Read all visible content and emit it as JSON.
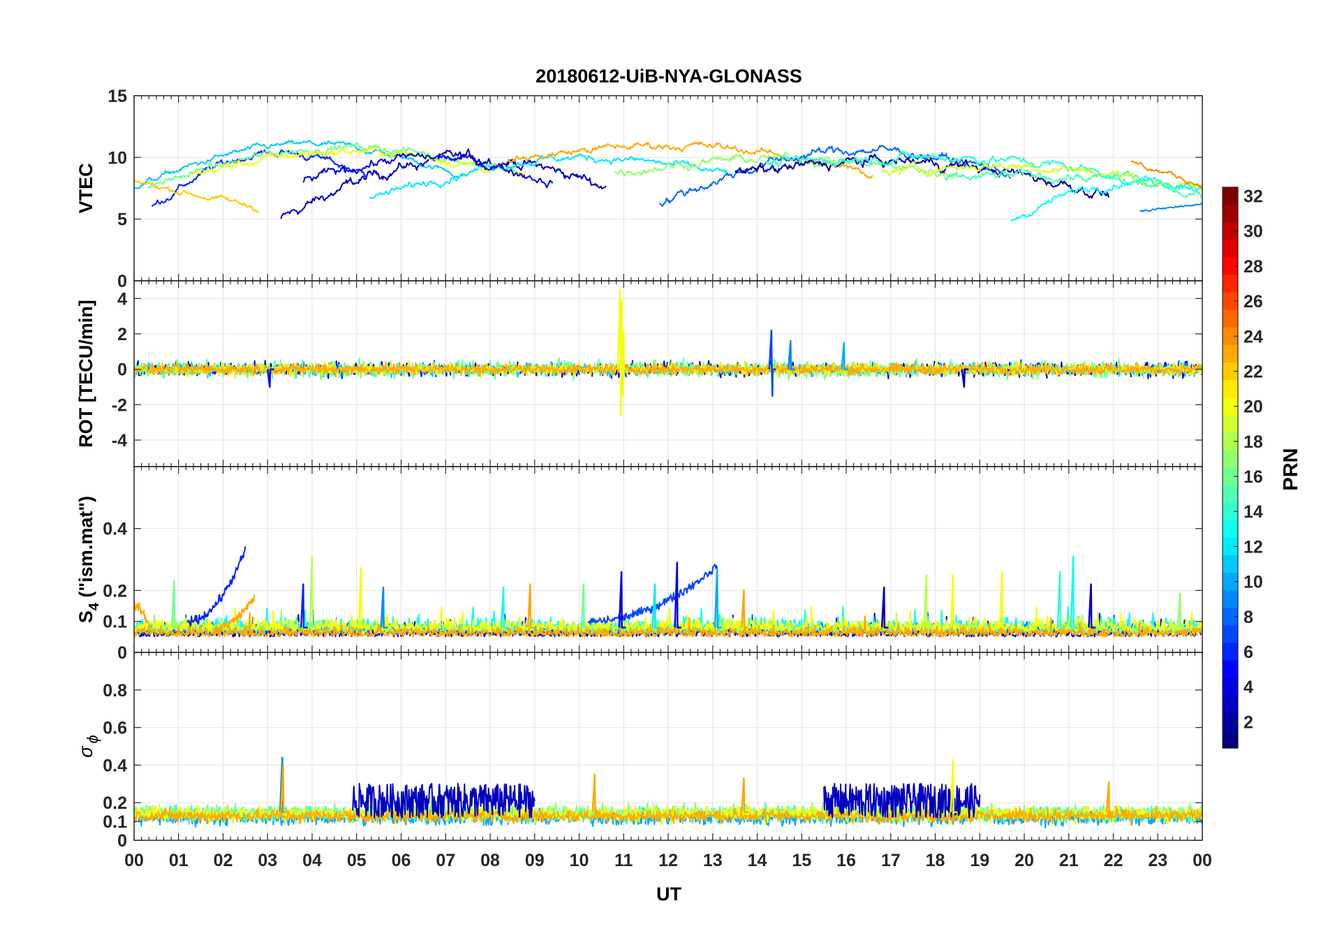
{
  "chart_data": {
    "type": "line",
    "title": "20180612-UiB-NYA-GLONASS",
    "xlabel": "UT",
    "xlim": [
      0,
      24
    ],
    "x_tick_labels": [
      "00",
      "01",
      "02",
      "03",
      "04",
      "05",
      "06",
      "07",
      "08",
      "09",
      "10",
      "11",
      "12",
      "13",
      "14",
      "15",
      "16",
      "17",
      "18",
      "19",
      "20",
      "21",
      "22",
      "23",
      "00"
    ],
    "grid": true,
    "panels": [
      {
        "name": "vtec",
        "ylabel": "VTEC",
        "ylim": [
          0,
          15
        ],
        "ticks": [
          0,
          5,
          10,
          15
        ],
        "tick_labels": [
          "0",
          "5",
          "10",
          "15"
        ],
        "traces": [
          {
            "prn": 3,
            "t0": 3.3,
            "t1": 10.6,
            "v0": 5.0,
            "v1": 7.7,
            "curve": 3.5,
            "noise": 0.35
          },
          {
            "prn": 6,
            "t0": 0.4,
            "t1": 5.2,
            "v0": 6.0,
            "v1": 8.6,
            "curve": 3.0,
            "noise": 0.25
          },
          {
            "prn": 11,
            "t0": 0.0,
            "t1": 7.4,
            "v0": 7.6,
            "v1": 8.5,
            "curve": 3.0,
            "noise": 0.2
          },
          {
            "prn": 16,
            "t0": 0.3,
            "t1": 8.6,
            "v0": 7.6,
            "v1": 8.8,
            "curve": 2.6,
            "noise": 0.25
          },
          {
            "prn": 20,
            "t0": 1.3,
            "t1": 8.8,
            "v0": 8.6,
            "v1": 8.4,
            "curve": 2.0,
            "noise": 0.25
          },
          {
            "prn": 22,
            "t0": 0.0,
            "t1": 2.8,
            "v0": 8.1,
            "v1": 5.9,
            "curve": 0.0,
            "noise": 0.2
          },
          {
            "prn": 12,
            "t0": 5.3,
            "t1": 13.4,
            "v0": 6.6,
            "v1": 8.6,
            "curve": 2.3,
            "noise": 0.25
          },
          {
            "prn": 4,
            "t0": 3.8,
            "t1": 9.4,
            "v0": 8.0,
            "v1": 8.0,
            "curve": 2.0,
            "noise": 0.3
          },
          {
            "prn": 23,
            "t0": 8.4,
            "t1": 16.6,
            "v0": 9.7,
            "v1": 8.6,
            "curve": 1.8,
            "noise": 0.25
          },
          {
            "prn": 17,
            "t0": 10.8,
            "t1": 18.4,
            "v0": 8.8,
            "v1": 8.6,
            "curve": 1.2,
            "noise": 0.3
          },
          {
            "prn": 8,
            "t0": 11.8,
            "t1": 19.7,
            "v0": 6.3,
            "v1": 8.7,
            "curve": 3.0,
            "noise": 0.3
          },
          {
            "prn": 2,
            "t0": 13.5,
            "t1": 21.9,
            "v0": 8.6,
            "v1": 7.0,
            "curve": 1.8,
            "noise": 0.35
          },
          {
            "prn": 14,
            "t0": 14.2,
            "t1": 24.0,
            "v0": 9.4,
            "v1": 7.4,
            "curve": 1.5,
            "noise": 0.3
          },
          {
            "prn": 19,
            "t0": 16.8,
            "t1": 24.0,
            "v0": 8.8,
            "v1": 7.3,
            "curve": 1.2,
            "noise": 0.3
          },
          {
            "prn": 13,
            "t0": 19.7,
            "t1": 24.0,
            "v0": 4.9,
            "v1": 7.6,
            "curve": 1.6,
            "noise": 0.25
          },
          {
            "prn": 24,
            "t0": 22.4,
            "t1": 24.0,
            "v0": 9.6,
            "v1": 7.8,
            "curve": 0.0,
            "noise": 0.2
          },
          {
            "prn": 9,
            "t0": 22.6,
            "t1": 24.0,
            "v0": 5.6,
            "v1": 6.2,
            "curve": 0.0,
            "noise": 0.1
          },
          {
            "prn": 15,
            "t0": 18.2,
            "t1": 24.0,
            "v0": 8.2,
            "v1": 7.0,
            "curve": 0.8,
            "noise": 0.3
          }
        ]
      },
      {
        "name": "rot",
        "ylabel": "ROT [TECU/min]",
        "ylim": [
          -5.5,
          5
        ],
        "ticks": [
          -4,
          -2,
          0,
          2,
          4
        ],
        "tick_labels": [
          "-4",
          "-2",
          "0",
          "2",
          "4"
        ],
        "traces": [
          {
            "prn": 4,
            "t0": 0.0,
            "t1": 24.0,
            "v0": 0,
            "v1": 0,
            "noise": 0.35
          },
          {
            "prn": 11,
            "t0": 0.0,
            "t1": 24.0,
            "v0": 0,
            "v1": 0,
            "noise": 0.3
          },
          {
            "prn": 16,
            "t0": 0.0,
            "t1": 24.0,
            "v0": 0,
            "v1": 0,
            "noise": 0.4
          },
          {
            "prn": 21,
            "t0": 0.0,
            "t1": 24.0,
            "v0": 0,
            "v1": 0,
            "noise": 0.3
          },
          {
            "prn": 23,
            "t0": 0.0,
            "t1": 24.0,
            "v0": 0,
            "v1": 0,
            "noise": 0.25
          }
        ],
        "spikes": [
          {
            "prn": 20,
            "t": 10.92,
            "values": [
              4.5,
              -2.6,
              3.9,
              -1.5,
              2.1
            ]
          },
          {
            "prn": 7,
            "t": 14.32,
            "values": [
              2.2,
              -1.5
            ]
          },
          {
            "prn": 9,
            "t": 14.75,
            "values": [
              1.6
            ]
          },
          {
            "prn": 10,
            "t": 15.95,
            "values": [
              1.5
            ]
          },
          {
            "prn": 5,
            "t": 3.05,
            "values": [
              -1.0
            ]
          },
          {
            "prn": 3,
            "t": 18.65,
            "values": [
              -1.0
            ]
          }
        ]
      },
      {
        "name": "s4",
        "ylabel": "S4 (\"ism.mat\")",
        "ylim": [
          0,
          0.6
        ],
        "ticks": [
          0,
          0.1,
          0.2,
          0.4
        ],
        "tick_labels": [
          "0",
          "0.1",
          "0.2",
          "0.4"
        ],
        "traces": [
          {
            "prn": 3,
            "t0": 0.0,
            "t1": 24.0,
            "v0": 0.06,
            "v1": 0.06,
            "noise": 0.03
          },
          {
            "prn": 8,
            "t0": 0.0,
            "t1": 24.0,
            "v0": 0.07,
            "v1": 0.07,
            "noise": 0.03
          },
          {
            "prn": 13,
            "t0": 0.0,
            "t1": 24.0,
            "v0": 0.08,
            "v1": 0.08,
            "noise": 0.035
          },
          {
            "prn": 17,
            "t0": 0.0,
            "t1": 24.0,
            "v0": 0.07,
            "v1": 0.07,
            "noise": 0.03
          },
          {
            "prn": 20,
            "t0": 0.0,
            "t1": 24.0,
            "v0": 0.08,
            "v1": 0.08,
            "noise": 0.035
          },
          {
            "prn": 23,
            "t0": 0.0,
            "t1": 24.0,
            "v0": 0.06,
            "v1": 0.06,
            "noise": 0.03
          }
        ],
        "ramps": [
          {
            "prn": 6,
            "t0": 1.2,
            "t1": 2.5,
            "v0": 0.1,
            "v1": 0.33
          },
          {
            "prn": 7,
            "t0": 10.2,
            "t1": 13.1,
            "v0": 0.1,
            "v1": 0.28
          },
          {
            "prn": 23,
            "t0": 0.0,
            "t1": 0.4,
            "v0": 0.15,
            "v1": 0.06
          },
          {
            "prn": 23,
            "t0": 1.8,
            "t1": 2.7,
            "v0": 0.08,
            "v1": 0.18
          }
        ],
        "spikes": [
          {
            "prn": 16,
            "t": 0.9,
            "values": [
              0.23
            ]
          },
          {
            "prn": 6,
            "t": 3.8,
            "values": [
              0.22
            ]
          },
          {
            "prn": 18,
            "t": 4.0,
            "values": [
              0.31
            ]
          },
          {
            "prn": 20,
            "t": 5.1,
            "values": [
              0.27
            ]
          },
          {
            "prn": 9,
            "t": 5.6,
            "values": [
              0.21
            ]
          },
          {
            "prn": 13,
            "t": 8.3,
            "values": [
              0.21
            ]
          },
          {
            "prn": 23,
            "t": 8.9,
            "values": [
              0.22
            ]
          },
          {
            "prn": 16,
            "t": 10.1,
            "values": [
              0.22
            ]
          },
          {
            "prn": 4,
            "t": 10.95,
            "values": [
              0.26
            ]
          },
          {
            "prn": 12,
            "t": 11.7,
            "values": [
              0.22
            ]
          },
          {
            "prn": 5,
            "t": 12.2,
            "values": [
              0.29
            ]
          },
          {
            "prn": 10,
            "t": 13.1,
            "values": [
              0.27
            ]
          },
          {
            "prn": 23,
            "t": 13.7,
            "values": [
              0.2
            ]
          },
          {
            "prn": 3,
            "t": 16.85,
            "values": [
              0.21
            ]
          },
          {
            "prn": 18,
            "t": 17.8,
            "values": [
              0.25
            ]
          },
          {
            "prn": 20,
            "t": 18.4,
            "values": [
              0.25
            ]
          },
          {
            "prn": 20,
            "t": 19.5,
            "values": [
              0.26
            ]
          },
          {
            "prn": 14,
            "t": 20.8,
            "values": [
              0.26
            ]
          },
          {
            "prn": 13,
            "t": 21.1,
            "values": [
              0.31
            ]
          },
          {
            "prn": 3,
            "t": 21.5,
            "values": [
              0.22
            ]
          },
          {
            "prn": 17,
            "t": 23.5,
            "values": [
              0.19
            ]
          }
        ]
      },
      {
        "name": "sigma_phi",
        "ylabel": "σ ϕ",
        "ylim": [
          0,
          1
        ],
        "ticks": [
          0,
          0.1,
          0.2,
          0.4,
          0.6,
          0.8
        ],
        "tick_labels": [
          "0",
          "0.1",
          "0.2",
          "0.4",
          "0.6",
          "0.8"
        ],
        "traces": [
          {
            "prn": 10,
            "t0": 0.0,
            "t1": 24.0,
            "v0": 0.12,
            "v1": 0.12,
            "noise": 0.035
          },
          {
            "prn": 14,
            "t0": 0.0,
            "t1": 24.0,
            "v0": 0.14,
            "v1": 0.14,
            "noise": 0.035
          },
          {
            "prn": 17,
            "t0": 0.0,
            "t1": 24.0,
            "v0": 0.15,
            "v1": 0.15,
            "noise": 0.035
          },
          {
            "prn": 20,
            "t0": 0.0,
            "t1": 24.0,
            "v0": 0.14,
            "v1": 0.14,
            "noise": 0.035
          },
          {
            "prn": 23,
            "t0": 0.0,
            "t1": 24.0,
            "v0": 0.13,
            "v1": 0.13,
            "noise": 0.03
          }
        ],
        "bursts": [
          {
            "prn": 3,
            "t0": 4.9,
            "t1": 9.0,
            "level": 0.22,
            "amp": 0.13
          },
          {
            "prn": 3,
            "t0": 15.5,
            "t1": 19.0,
            "level": 0.22,
            "amp": 0.13
          }
        ],
        "spikes": [
          {
            "prn": 9,
            "t": 3.33,
            "values": [
              0.44
            ]
          },
          {
            "prn": 23,
            "t": 3.35,
            "values": [
              0.4
            ]
          },
          {
            "prn": 23,
            "t": 10.35,
            "values": [
              0.35
            ]
          },
          {
            "prn": 23,
            "t": 13.7,
            "values": [
              0.33
            ]
          },
          {
            "prn": 20,
            "t": 18.4,
            "values": [
              0.42
            ]
          },
          {
            "prn": 23,
            "t": 21.9,
            "values": [
              0.31
            ]
          }
        ]
      }
    ],
    "colorbar": {
      "label": "PRN",
      "range": [
        1,
        32
      ],
      "colormap": "jet",
      "ticks": [
        2,
        4,
        6,
        8,
        10,
        12,
        14,
        16,
        18,
        20,
        22,
        24,
        26,
        28,
        30,
        32
      ],
      "tick_labels": [
        "2",
        "4",
        "6",
        "8",
        "10",
        "12",
        "14",
        "16",
        "18",
        "20",
        "22",
        "24",
        "26",
        "28",
        "30",
        "32"
      ]
    }
  }
}
